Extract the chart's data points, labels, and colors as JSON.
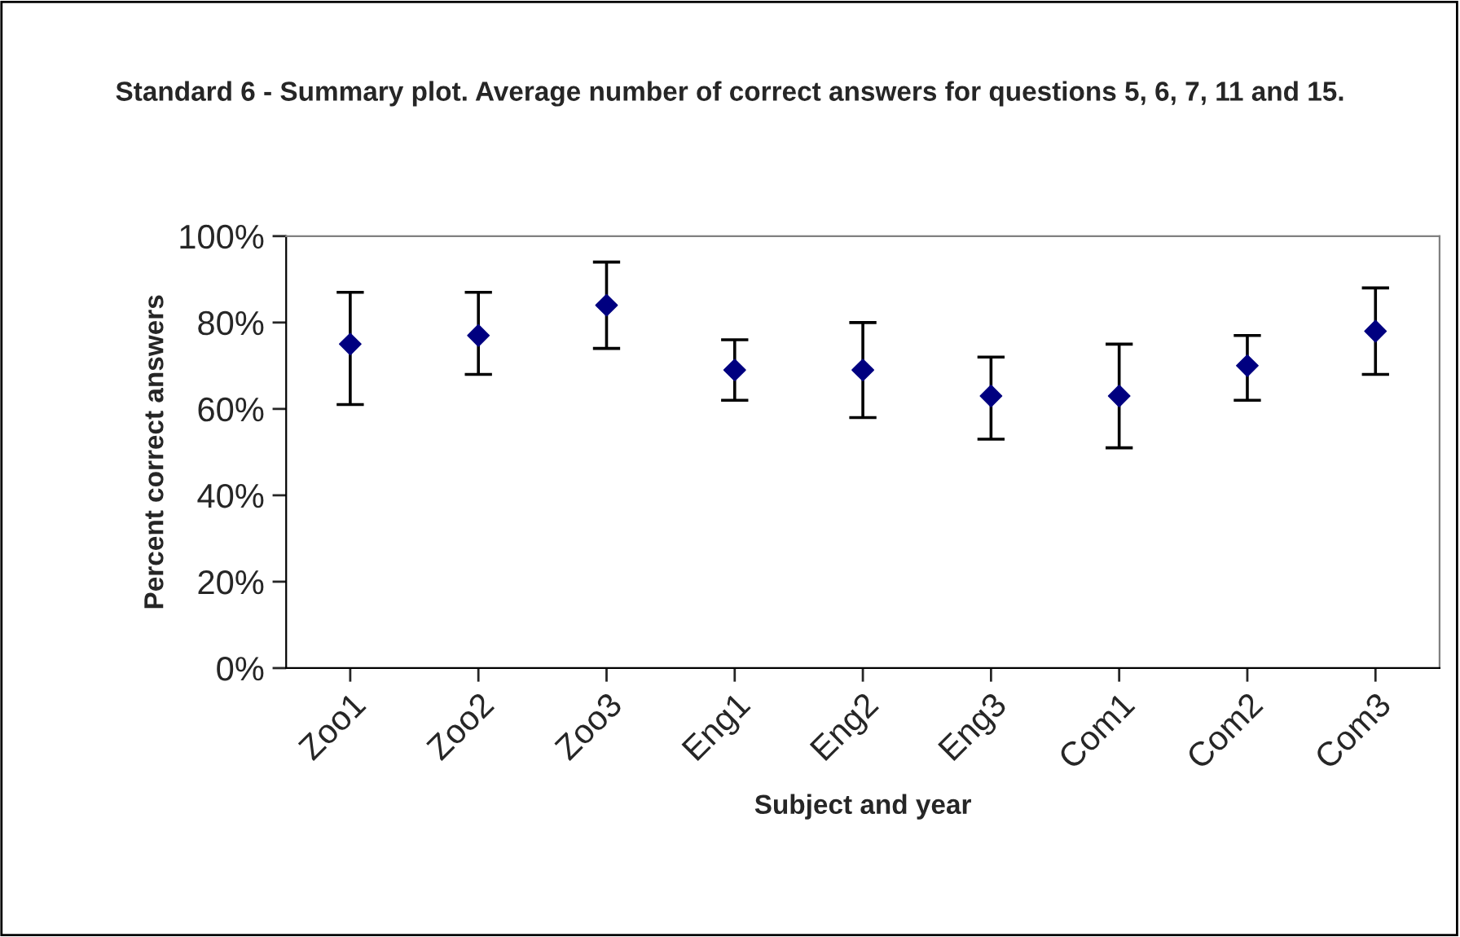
{
  "chart_data": {
    "type": "scatter",
    "title": "Standard 6 - Summary plot. Average number of correct answers for questions 5, 6, 7, 11 and 15.",
    "xlabel": "Subject and year",
    "ylabel": "Percent correct answers",
    "categories": [
      "Zoo1",
      "Zoo2",
      "Zoo3",
      "Eng1",
      "Eng2",
      "Eng3",
      "Com1",
      "Com2",
      "Com3"
    ],
    "values": [
      75,
      77,
      84,
      69,
      69,
      63,
      63,
      70,
      78
    ],
    "errors": [
      [
        61,
        87
      ],
      [
        68,
        87
      ],
      [
        74,
        94
      ],
      [
        62,
        76
      ],
      [
        58,
        80
      ],
      [
        53,
        72
      ],
      [
        51,
        75
      ],
      [
        62,
        77
      ],
      [
        68,
        88
      ]
    ],
    "color": "#000080",
    "marker": "diamond",
    "grid": false,
    "legend": false,
    "ylim": [
      0,
      100
    ],
    "yticks": [
      {
        "value": 0,
        "label": "0%"
      },
      {
        "value": 20,
        "label": "20%"
      },
      {
        "value": 40,
        "label": "40%"
      },
      {
        "value": 60,
        "label": "60%"
      },
      {
        "value": 80,
        "label": "80%"
      },
      {
        "value": 100,
        "label": "100%"
      }
    ]
  }
}
